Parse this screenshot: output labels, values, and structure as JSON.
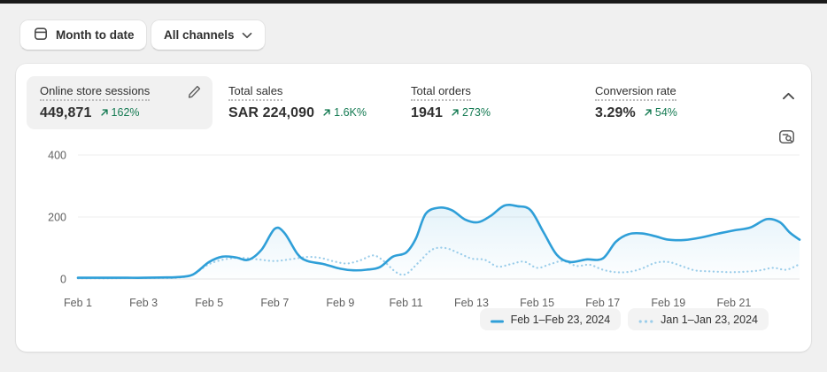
{
  "toolbar": {
    "date_range_label": "Month to date",
    "channels_label": "All channels"
  },
  "metrics": [
    {
      "label": "Online store sessions",
      "value": "449,871",
      "delta": "162%",
      "selected": true
    },
    {
      "label": "Total sales",
      "value": "SAR 224,090",
      "delta": "1.6K%",
      "selected": false
    },
    {
      "label": "Total orders",
      "value": "1941",
      "delta": "273%",
      "selected": false
    },
    {
      "label": "Conversion rate",
      "value": "3.29%",
      "delta": "54%",
      "selected": false
    }
  ],
  "colors": {
    "current_line": "#2f9fd8",
    "previous_line": "#9bcdea",
    "positive_delta": "#147a52",
    "axis_text": "#616161",
    "grid": "#ececec"
  },
  "chart_data": {
    "type": "line",
    "title": "Online store sessions",
    "ylim": [
      0,
      440
    ],
    "y_ticks": [
      0,
      200,
      400
    ],
    "x_ticks": [
      {
        "day": 1,
        "label": "Feb 1"
      },
      {
        "day": 3,
        "label": "Feb 3"
      },
      {
        "day": 5,
        "label": "Feb 5"
      },
      {
        "day": 7,
        "label": "Feb 7"
      },
      {
        "day": 9,
        "label": "Feb 9"
      },
      {
        "day": 11,
        "label": "Feb 11"
      },
      {
        "day": 13,
        "label": "Feb 13"
      },
      {
        "day": 15,
        "label": "Feb 15"
      },
      {
        "day": 17,
        "label": "Feb 17"
      },
      {
        "day": 19,
        "label": "Feb 19"
      },
      {
        "day": 21,
        "label": "Feb 21"
      }
    ],
    "legend_position": "bottom-right",
    "series": [
      {
        "name": "Feb 1–Feb 23, 2024",
        "style": "solid",
        "color": "#2f9fd8",
        "points": [
          [
            1,
            4
          ],
          [
            1.5,
            4
          ],
          [
            2,
            4
          ],
          [
            2.5,
            4
          ],
          [
            3,
            4
          ],
          [
            3.5,
            5
          ],
          [
            4,
            6
          ],
          [
            4.5,
            14
          ],
          [
            5,
            55
          ],
          [
            5.4,
            72
          ],
          [
            5.8,
            70
          ],
          [
            6.2,
            62
          ],
          [
            6.6,
            95
          ],
          [
            7,
            162
          ],
          [
            7.3,
            148
          ],
          [
            7.7,
            80
          ],
          [
            8,
            58
          ],
          [
            8.5,
            48
          ],
          [
            9,
            33
          ],
          [
            9.4,
            28
          ],
          [
            9.8,
            30
          ],
          [
            10.2,
            38
          ],
          [
            10.6,
            72
          ],
          [
            11,
            85
          ],
          [
            11.3,
            130
          ],
          [
            11.6,
            210
          ],
          [
            12,
            230
          ],
          [
            12.4,
            222
          ],
          [
            12.8,
            192
          ],
          [
            13.2,
            183
          ],
          [
            13.6,
            205
          ],
          [
            14,
            237
          ],
          [
            14.4,
            235
          ],
          [
            14.8,
            222
          ],
          [
            15.2,
            150
          ],
          [
            15.6,
            78
          ],
          [
            16,
            55
          ],
          [
            16.5,
            63
          ],
          [
            17,
            66
          ],
          [
            17.4,
            120
          ],
          [
            17.8,
            145
          ],
          [
            18.2,
            147
          ],
          [
            18.6,
            138
          ],
          [
            19,
            127
          ],
          [
            19.5,
            126
          ],
          [
            20,
            134
          ],
          [
            20.5,
            146
          ],
          [
            21,
            157
          ],
          [
            21.5,
            166
          ],
          [
            22,
            193
          ],
          [
            22.4,
            183
          ],
          [
            22.7,
            150
          ],
          [
            23,
            127
          ]
        ]
      },
      {
        "name": "Jan 1–Jan 23, 2024",
        "style": "dotted",
        "color": "#9bcdea",
        "points": [
          [
            1,
            2
          ],
          [
            1.5,
            2
          ],
          [
            2,
            2
          ],
          [
            2.5,
            3
          ],
          [
            3,
            3
          ],
          [
            3.5,
            3
          ],
          [
            4,
            4
          ],
          [
            4.5,
            14
          ],
          [
            5,
            48
          ],
          [
            5.5,
            64
          ],
          [
            6,
            68
          ],
          [
            6.5,
            63
          ],
          [
            7,
            58
          ],
          [
            7.5,
            64
          ],
          [
            8,
            71
          ],
          [
            8.4,
            68
          ],
          [
            8.8,
            57
          ],
          [
            9.2,
            50
          ],
          [
            9.6,
            60
          ],
          [
            10,
            76
          ],
          [
            10.3,
            60
          ],
          [
            10.7,
            22
          ],
          [
            11,
            16
          ],
          [
            11.4,
            55
          ],
          [
            11.8,
            95
          ],
          [
            12.2,
            100
          ],
          [
            12.6,
            84
          ],
          [
            13,
            66
          ],
          [
            13.4,
            62
          ],
          [
            13.8,
            40
          ],
          [
            14.2,
            48
          ],
          [
            14.6,
            56
          ],
          [
            15,
            36
          ],
          [
            15.4,
            48
          ],
          [
            15.8,
            58
          ],
          [
            16.2,
            42
          ],
          [
            16.6,
            46
          ],
          [
            17,
            30
          ],
          [
            17.4,
            22
          ],
          [
            17.8,
            23
          ],
          [
            18.2,
            34
          ],
          [
            18.6,
            52
          ],
          [
            19,
            55
          ],
          [
            19.4,
            42
          ],
          [
            19.8,
            28
          ],
          [
            20.2,
            25
          ],
          [
            20.6,
            23
          ],
          [
            21,
            22
          ],
          [
            21.4,
            24
          ],
          [
            21.8,
            28
          ],
          [
            22.2,
            36
          ],
          [
            22.6,
            30
          ],
          [
            23,
            48
          ]
        ]
      }
    ]
  }
}
